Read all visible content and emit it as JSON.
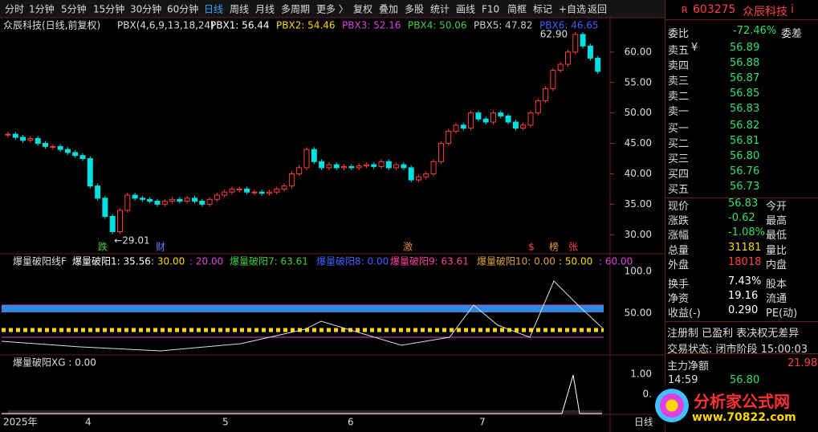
{
  "toolbar": [
    "分时",
    "1分钟",
    "5分钟",
    "15分钟",
    "30分钟",
    "60分钟",
    "日线",
    "周线",
    "月线",
    "多周期",
    "更多 〉",
    "复权",
    "叠加",
    "多股",
    "统计",
    "画线",
    "F10",
    "简框",
    "标记",
    "+自选",
    "返回"
  ],
  "chart_header": {
    "title": "众辰科技(日线,前复权)",
    "indicator": "PBX(4,6,9,13,18,24)",
    "items": [
      {
        "text": "PBX1: 56.44",
        "color": "#ffffff"
      },
      {
        "text": "PBX2: 54.46",
        "color": "#ffd700"
      },
      {
        "text": "PBX3: 52.16",
        "color": "#e040e0"
      },
      {
        "text": "PBX4: 50.06",
        "color": "#40d040"
      },
      {
        "text": "PBX5: 47.82",
        "color": "#cccccc"
      },
      {
        "text": "PBX6: 46.65",
        "color": "#4060ff"
      }
    ]
  },
  "kline": {
    "ylim": [
      27,
      64.6
    ],
    "yticks": [
      {
        "value": 60,
        "label": "60.00"
      },
      {
        "value": 55,
        "label": "55.00"
      },
      {
        "value": 50,
        "label": "50.00"
      },
      {
        "value": 45,
        "label": "45.00"
      },
      {
        "value": 40,
        "label": "40.00"
      },
      {
        "value": 35,
        "label": "35.00"
      },
      {
        "value": 30,
        "label": "30.00"
      }
    ],
    "close": [
      46.5,
      46,
      45.5,
      45.8,
      45,
      44.5,
      44.5,
      44,
      43.5,
      43,
      42.5,
      38,
      36,
      33,
      30.5,
      34,
      36.5,
      36,
      35.8,
      35.5,
      35,
      35.5,
      35.8,
      35.5,
      36,
      35.5,
      35,
      35.8,
      36.5,
      37,
      37.5,
      37.5,
      37,
      37,
      36.8,
      37,
      37.5,
      38,
      40,
      41,
      44,
      42,
      41,
      41.5,
      41,
      41.2,
      41,
      41.3,
      41.5,
      41.2,
      42,
      41,
      41.5,
      41,
      39,
      39.5,
      40,
      42,
      45,
      47,
      48,
      47.5,
      50,
      49,
      48.5,
      50,
      49.5,
      48.5,
      47.5,
      48,
      50,
      52,
      54,
      57,
      58,
      60,
      62.9,
      61,
      59,
      56.83
    ],
    "high_label": {
      "value": 62.9,
      "label": "62.90"
    },
    "low_label": {
      "value": 29.01,
      "label": "←29.01"
    },
    "markers": [
      {
        "text": "跌",
        "color": "#40d040"
      },
      {
        "text": "财",
        "color": "#6080ff"
      },
      {
        "text": "激",
        "color": "#e08040"
      },
      {
        "text": "$",
        "color": "#ff4040"
      },
      {
        "text": "榜",
        "color": "#e0a040"
      },
      {
        "text": "张",
        "color": "#ff4040"
      }
    ]
  },
  "pane2": {
    "name": "爆量破阳线F",
    "items": [
      {
        "text": "爆量破阳1: 35.56",
        "color": "#ffffff"
      },
      {
        "text": ": 30.00",
        "color": "#ffd700"
      },
      {
        "text": ": 20.00",
        "color": "#e040e0"
      },
      {
        "text": "爆量破阳7: 63.61",
        "color": "#40d040"
      },
      {
        "text": "爆量破阳8: 0.00",
        "color": "#4060ff"
      },
      {
        "text": "爆量破阳9: 63.61",
        "color": "#ff40a0"
      },
      {
        "text": "爆量破阳10: 0.00",
        "color": "#e0a040"
      },
      {
        "text": ": 50.00",
        "color": "#ffd700"
      },
      {
        "text": ": 60.00",
        "color": "#e040e0"
      }
    ],
    "yticks": [
      "100.0",
      "50.00"
    ]
  },
  "pane3": {
    "name": "爆量破阳XG : 0.00",
    "yticks": [
      "1.00",
      "0."
    ]
  },
  "time_axis": [
    "2025年",
    "4",
    "5",
    "6",
    "7",
    "日线"
  ],
  "quote": {
    "flag": "R",
    "code": "603275",
    "name": "众辰科技",
    "info": "i",
    "weibi": {
      "label": "委比",
      "value": "-72.46%",
      "right": "委差"
    },
    "sells": [
      {
        "label": "卖五",
        "extra": "¥",
        "price": "56.89"
      },
      {
        "label": "卖四",
        "price": "56.88"
      },
      {
        "label": "卖三",
        "price": "56.87"
      },
      {
        "label": "卖二",
        "price": "56.85"
      },
      {
        "label": "卖一",
        "price": "56.83"
      }
    ],
    "buys": [
      {
        "label": "买一",
        "price": "56.82"
      },
      {
        "label": "买二",
        "price": "56.81"
      },
      {
        "label": "买三",
        "price": "56.80"
      },
      {
        "label": "买四",
        "price": "56.76"
      },
      {
        "label": "买五",
        "price": "56.73"
      }
    ],
    "stats": [
      {
        "label": "现价",
        "value": "56.83",
        "right": "今开",
        "color": "#30e070"
      },
      {
        "label": "涨跌",
        "value": "-0.62",
        "right": "最高",
        "color": "#30e070"
      },
      {
        "label": "涨幅",
        "value": "-1.08%",
        "right": "最低",
        "color": "#30e070"
      },
      {
        "label": "总量",
        "value": "31181",
        "right": "量比",
        "color": "#ffd700"
      },
      {
        "label": "外盘",
        "value": "18018",
        "right": "内盘",
        "color": "#ff4040"
      },
      {
        "label": "换手",
        "value": "7.43%",
        "right": "股本",
        "color": "#ffffff"
      },
      {
        "label": "净资",
        "value": "19.16",
        "right": "流通",
        "color": "#ffffff"
      },
      {
        "label": "收益(-)",
        "value": "0.290",
        "right": "PE(动)",
        "color": "#ffffff"
      }
    ],
    "tags": "注册制 已盈利 表决权无差异",
    "status": "交易状态: 闭市阶段 15:00:03",
    "net_label": "主力净额",
    "net_value": "21.98",
    "tick_time": "14:59",
    "tick_price": "56.80"
  },
  "watermark": {
    "title": "分析家公式网",
    "url": "www.70822.com"
  }
}
